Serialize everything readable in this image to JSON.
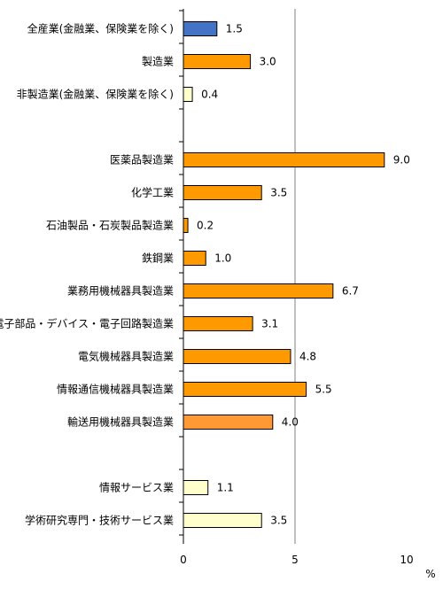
{
  "chart_data": {
    "type": "bar",
    "orientation": "horizontal",
    "unit": "%",
    "xlim": [
      0,
      10
    ],
    "xticks": [
      "0",
      "5",
      "10"
    ],
    "grid": "vertical line at 5",
    "categories": [
      "全産業(金融業、保険業を除く)",
      "製造業",
      "非製造業(金融業、保険業を除く)",
      "",
      "医薬品製造業",
      "化学工業",
      "石油製品・石炭製品製造業",
      "鉄鋼業",
      "業務用機械器具製造業",
      "電子部品・デバイス・電子回路製造業",
      "電気機械器具製造業",
      "情報通信機械器具製造業",
      "輸送用機械器具製造業",
      "",
      "情報サービス業",
      "学術研究専門・技術サービス業"
    ],
    "values": [
      1.5,
      3.0,
      0.4,
      null,
      9.0,
      3.5,
      0.2,
      1.0,
      6.7,
      3.1,
      4.8,
      5.5,
      4.0,
      null,
      1.1,
      3.5
    ],
    "value_labels": [
      "1.5",
      "3.0",
      "0.4",
      "",
      "9.0",
      "3.5",
      "0.2",
      "1.0",
      "6.7",
      "3.1",
      "4.8",
      "5.5",
      "4.0",
      "",
      "1.1",
      "3.5"
    ],
    "colors": [
      "#4472c4",
      "#ff9900",
      "#ffffcc",
      null,
      "#ff9900",
      "#ff9900",
      "#ff9900",
      "#ff9900",
      "#ff9900",
      "#ff9900",
      "#ff9900",
      "#ff9900",
      "#ff9933",
      null,
      "#ffffcc",
      "#ffffcc"
    ]
  }
}
